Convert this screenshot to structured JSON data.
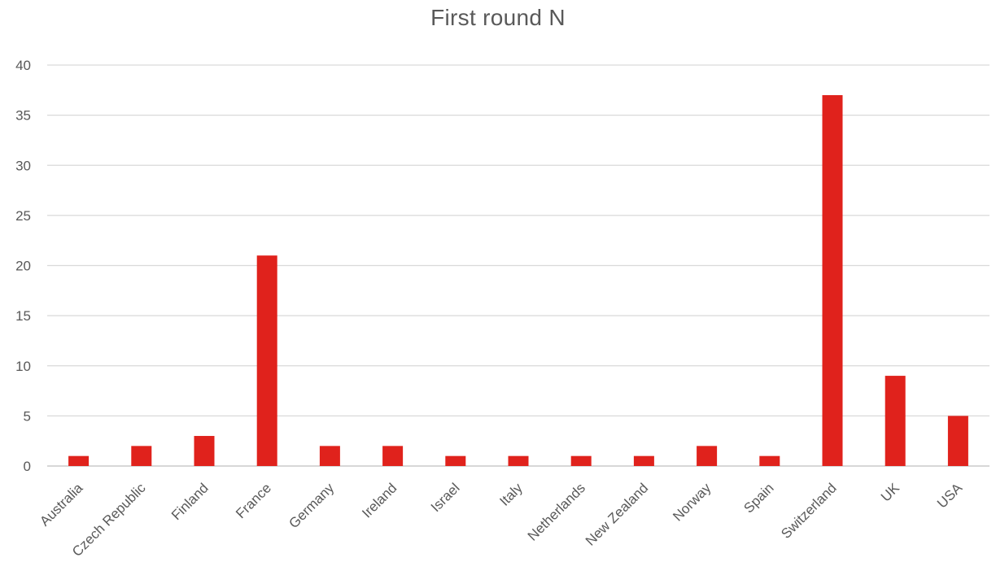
{
  "chart_data": {
    "type": "bar",
    "title": "First round  N",
    "xlabel": "",
    "ylabel": "",
    "ylim": [
      0,
      40
    ],
    "y_ticks": [
      "0",
      "5",
      "10",
      "15",
      "20",
      "25",
      "30",
      "35",
      "40"
    ],
    "grid": true,
    "legend": "none",
    "bar_color": "#E0221C",
    "categories": [
      "Australia",
      "Czech Republic",
      "Finland",
      "France",
      "Germany",
      "Ireland",
      "Israel",
      "Italy",
      "Netherlands",
      "New Zealand",
      "Norway",
      "Spain",
      "Switzerland",
      "UK",
      "USA"
    ],
    "values": [
      1,
      2,
      3,
      21,
      2,
      2,
      1,
      1,
      1,
      1,
      2,
      1,
      37,
      9,
      5
    ]
  }
}
